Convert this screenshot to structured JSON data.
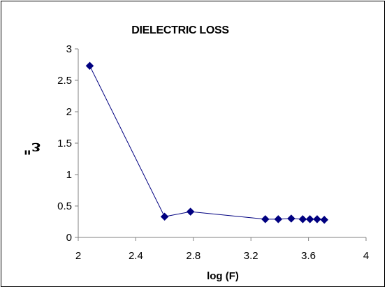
{
  "chart_data": {
    "type": "line",
    "title": "DIELECTRIC LOSS",
    "xlabel": "log (F)",
    "ylabel": "ε\"",
    "xlim": [
      2,
      4
    ],
    "ylim": [
      0,
      3
    ],
    "xticks": [
      "2",
      "2.4",
      "2.8",
      "3.2",
      "3.6",
      "4"
    ],
    "yticks": [
      "0",
      "0.5",
      "1",
      "1.5",
      "2",
      "2.5",
      "3"
    ],
    "grid": false,
    "legend": "none",
    "colors": {
      "series": "#000080",
      "axis": "#808080",
      "frame": "#000000"
    },
    "series": [
      {
        "x": [
          2.08,
          2.6,
          2.78,
          3.3,
          3.39,
          3.48,
          3.56,
          3.61,
          3.66,
          3.71
        ],
        "y": [
          2.73,
          0.33,
          0.41,
          0.29,
          0.29,
          0.3,
          0.29,
          0.29,
          0.29,
          0.28
        ]
      }
    ]
  }
}
